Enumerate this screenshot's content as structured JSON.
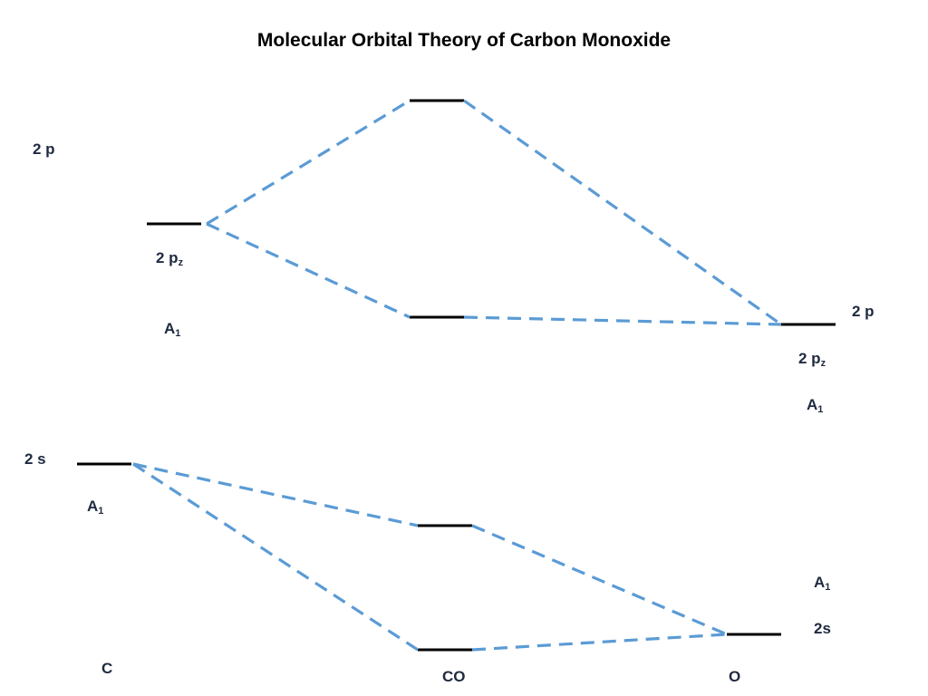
{
  "title": "Molecular Orbital Theory of Carbon Monoxide",
  "labels": {
    "carbon_2p": "2 p",
    "carbon_2pz": "2 p",
    "carbon_2pz_sub": "z",
    "carbon_a1_upper": "A",
    "carbon_a1_upper_sub": "1",
    "carbon_2s": "2 s",
    "carbon_a1_lower": "A",
    "carbon_a1_lower_sub": "1",
    "carbon_atom": "C",
    "oxygen_2p": "2 p",
    "oxygen_2pz": "2 p",
    "oxygen_2pz_sub": "z",
    "oxygen_a1_upper": "A",
    "oxygen_a1_upper_sub": "1",
    "oxygen_a1_lower": "A",
    "oxygen_a1_lower_sub": "1",
    "oxygen_2s": "2s",
    "oxygen_atom": "O",
    "molecule": "CO"
  },
  "colors": {
    "connector": "#5b9bd5",
    "level": "#000000",
    "label": "#1f2a40"
  }
}
